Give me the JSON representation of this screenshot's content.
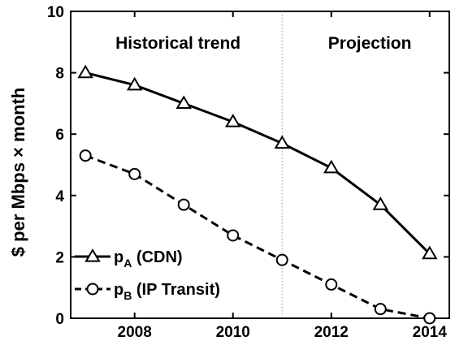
{
  "chart_data": {
    "type": "line",
    "title": "",
    "xlabel": "",
    "ylabel": "$ per Mbps × month",
    "xlim": [
      2006.7,
      2014.4
    ],
    "ylim": [
      0,
      10
    ],
    "xticks": [
      2008,
      2010,
      2012,
      2014
    ],
    "yticks": [
      0,
      2,
      4,
      6,
      8,
      10
    ],
    "grid": false,
    "legend_position": "bottom-left",
    "annotations": [
      {
        "text": "Historical trend"
      },
      {
        "text": "Projection"
      }
    ],
    "divider_x": 2011,
    "x": [
      2007,
      2008,
      2009,
      2010,
      2011,
      2012,
      2013,
      2014
    ],
    "series": [
      {
        "name": "pA (CDN)",
        "legend_main": "p",
        "legend_sub": "A",
        "legend_rest": " (CDN)",
        "marker": "triangle",
        "linestyle": "solid",
        "values": [
          8.0,
          7.6,
          7.0,
          6.4,
          5.7,
          4.9,
          3.7,
          2.1
        ]
      },
      {
        "name": "pB (IP Transit)",
        "legend_main": "p",
        "legend_sub": "B",
        "legend_rest": " (IP Transit)",
        "marker": "circle",
        "linestyle": "dashed",
        "values": [
          5.3,
          4.7,
          3.7,
          2.7,
          1.9,
          1.1,
          0.3,
          0.0
        ]
      }
    ],
    "colors": {
      "line": "#000000",
      "divider": "#d070d0",
      "background": "#ffffff"
    }
  }
}
